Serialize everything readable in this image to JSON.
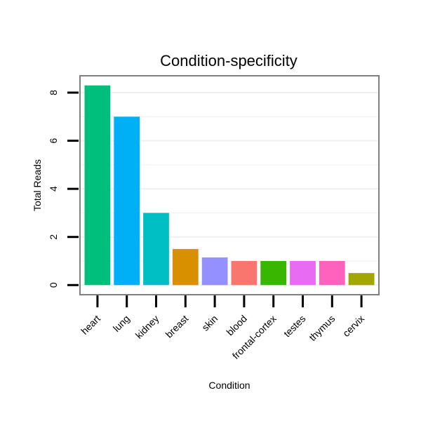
{
  "chart_data": {
    "type": "bar",
    "title": "Condition-specificity",
    "xlabel": "Condition",
    "ylabel": "Total Reads",
    "categories": [
      "heart",
      "lung",
      "kidney",
      "breast",
      "skin",
      "blood",
      "frontal-cortex",
      "testes",
      "thymus",
      "cervix"
    ],
    "values": [
      8.3,
      7.0,
      3.0,
      1.5,
      1.15,
      1.0,
      1.0,
      1.0,
      1.0,
      0.5
    ],
    "colors": [
      "#00BF7D",
      "#00B0F6",
      "#00BFC4",
      "#D89000",
      "#9590FF",
      "#F8766D",
      "#39B600",
      "#E76BF3",
      "#FF62BC",
      "#A3A500"
    ],
    "yticks": [
      "0",
      "2",
      "4",
      "6",
      "8"
    ],
    "ylim": [
      -0.4,
      8.7
    ],
    "grid": true,
    "legend": "none"
  }
}
